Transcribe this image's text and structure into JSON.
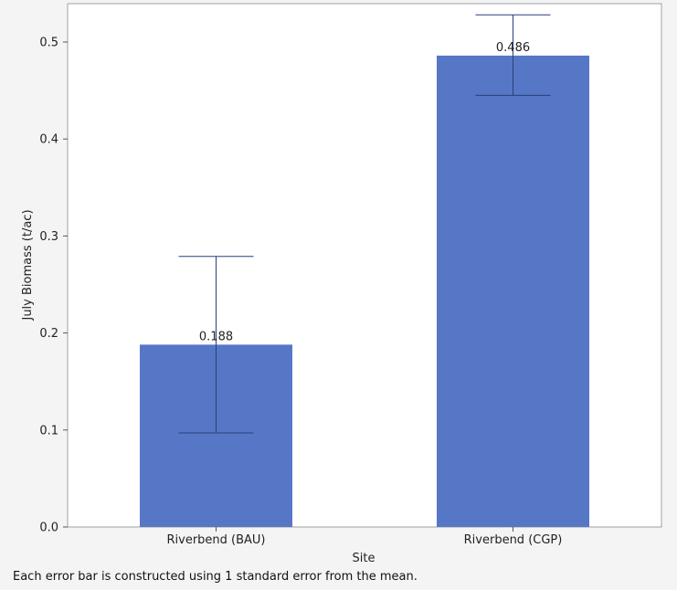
{
  "chart_data": {
    "type": "bar",
    "categories": [
      "Riverbend (BAU)",
      "Riverbend (CGP)"
    ],
    "values": [
      0.188,
      0.486
    ],
    "error_bars": [
      {
        "low": 0.097,
        "high": 0.279
      },
      {
        "low": 0.445,
        "high": 0.528
      }
    ],
    "data_labels": [
      "0.188",
      "0.486"
    ],
    "xlabel": "Site",
    "ylabel": "July Biomass (t/ac)",
    "ylim": [
      0,
      0.5
    ],
    "yticks": [
      0.0,
      0.1,
      0.2,
      0.3,
      0.4,
      0.5
    ],
    "ytick_labels": [
      "0.0",
      "0.1",
      "0.2",
      "0.3",
      "0.4",
      "0.5"
    ],
    "bar_color": "#5677c6",
    "error_color": "#2a3f7a",
    "grid": false,
    "legend": "none"
  },
  "footnote": "Each error bar is constructed using 1 standard error from the mean."
}
